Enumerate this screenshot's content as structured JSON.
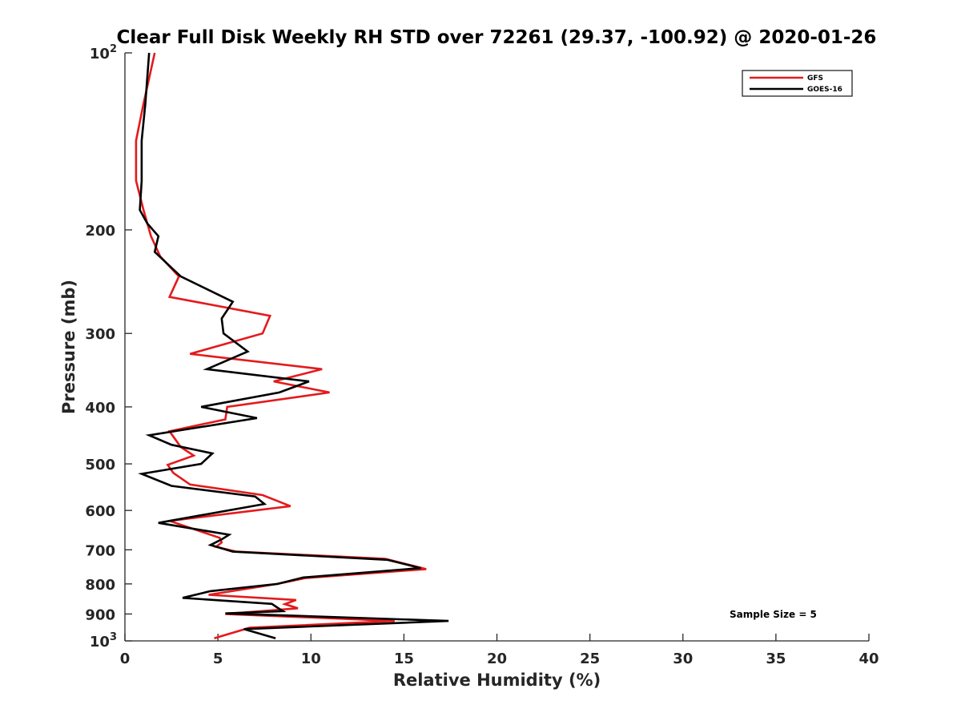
{
  "chart_data": {
    "type": "line",
    "title": "Clear Full Disk Weekly RH STD over 72261 (29.37, -100.92) @ 2020-01-26",
    "xlabel": "Relative Humidity (%)",
    "ylabel": "Pressure (mb)",
    "xlim": [
      0,
      40
    ],
    "ylim": [
      100,
      1000
    ],
    "yscale": "log",
    "y_reversed": true,
    "x_ticks": [
      0,
      5,
      10,
      15,
      20,
      25,
      30,
      35,
      40
    ],
    "y_ticks": [
      {
        "value": 100,
        "base": "10",
        "exp": "2"
      },
      {
        "value": 200,
        "label": "200"
      },
      {
        "value": 300,
        "label": "300"
      },
      {
        "value": 400,
        "label": "400"
      },
      {
        "value": 500,
        "label": "500"
      },
      {
        "value": 600,
        "label": "600"
      },
      {
        "value": 700,
        "label": "700"
      },
      {
        "value": 800,
        "label": "800"
      },
      {
        "value": 900,
        "label": "900"
      },
      {
        "value": 1000,
        "base": "10",
        "exp": "3"
      }
    ],
    "grid": false,
    "legend_position": "top-right",
    "annotation": "Sample Size = 5",
    "series": [
      {
        "name": "GFS",
        "color": "#e41a1c",
        "points": [
          [
            1.6,
            100
          ],
          [
            1.0,
            122
          ],
          [
            0.6,
            141
          ],
          [
            0.6,
            165
          ],
          [
            1.0,
            185
          ],
          [
            1.4,
            205
          ],
          [
            1.9,
            222
          ],
          [
            2.9,
            240
          ],
          [
            2.4,
            260
          ],
          [
            7.8,
            280
          ],
          [
            7.4,
            300
          ],
          [
            3.5,
            325
          ],
          [
            10.6,
            345
          ],
          [
            8.0,
            362
          ],
          [
            11.0,
            378
          ],
          [
            5.5,
            400
          ],
          [
            5.4,
            420
          ],
          [
            2.4,
            440
          ],
          [
            3.0,
            468
          ],
          [
            3.7,
            484
          ],
          [
            2.3,
            502
          ],
          [
            2.6,
            518
          ],
          [
            3.5,
            542
          ],
          [
            7.4,
            565
          ],
          [
            8.9,
            590
          ],
          [
            2.4,
            625
          ],
          [
            5.1,
            668
          ],
          [
            5.2,
            680
          ],
          [
            4.9,
            692
          ],
          [
            6.0,
            705
          ],
          [
            14.0,
            725
          ],
          [
            16.2,
            755
          ],
          [
            9.7,
            782
          ],
          [
            8.2,
            800
          ],
          [
            4.5,
            835
          ],
          [
            9.2,
            852
          ],
          [
            8.6,
            866
          ],
          [
            9.3,
            880
          ],
          [
            5.4,
            900
          ],
          [
            14.5,
            925
          ],
          [
            6.7,
            950
          ],
          [
            4.8,
            990
          ]
        ]
      },
      {
        "name": "GOES-16",
        "color": "#000000",
        "points": [
          [
            1.3,
            100
          ],
          [
            1.1,
            122
          ],
          [
            0.9,
            141
          ],
          [
            0.9,
            165
          ],
          [
            0.8,
            185
          ],
          [
            1.2,
            195
          ],
          [
            1.8,
            205
          ],
          [
            1.6,
            218
          ],
          [
            3.0,
            240
          ],
          [
            5.8,
            265
          ],
          [
            5.2,
            283
          ],
          [
            5.3,
            300
          ],
          [
            6.6,
            322
          ],
          [
            4.4,
            345
          ],
          [
            9.9,
            362
          ],
          [
            8.3,
            378
          ],
          [
            4.1,
            400
          ],
          [
            7.1,
            418
          ],
          [
            1.3,
            447
          ],
          [
            2.5,
            464
          ],
          [
            4.7,
            480
          ],
          [
            4.1,
            500
          ],
          [
            0.9,
            520
          ],
          [
            2.5,
            545
          ],
          [
            7.0,
            568
          ],
          [
            7.5,
            585
          ],
          [
            1.8,
            630
          ],
          [
            5.6,
            660
          ],
          [
            5.2,
            672
          ],
          [
            4.6,
            687
          ],
          [
            5.8,
            705
          ],
          [
            14.1,
            728
          ],
          [
            15.9,
            752
          ],
          [
            9.6,
            780
          ],
          [
            8.2,
            800
          ],
          [
            4.6,
            823
          ],
          [
            3.1,
            845
          ],
          [
            7.9,
            865
          ],
          [
            8.2,
            878
          ],
          [
            8.5,
            890
          ],
          [
            5.4,
            898
          ],
          [
            17.4,
            925
          ],
          [
            6.4,
            955
          ],
          [
            8.1,
            990
          ]
        ]
      }
    ]
  }
}
